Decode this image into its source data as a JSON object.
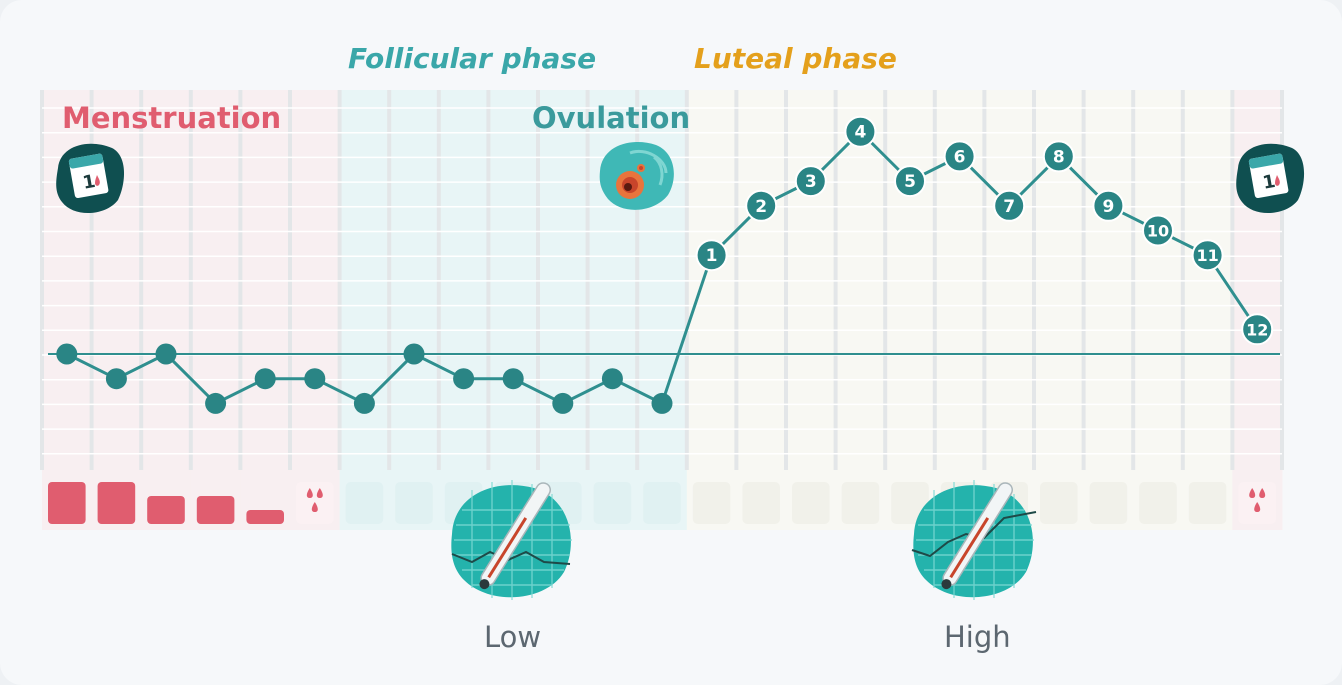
{
  "phases": {
    "follicular": "Follicular phase",
    "luteal": "Luteal phase"
  },
  "labels": {
    "menstruation": "Menstruation",
    "ovulation": "Ovulation",
    "low": "Low",
    "high": "High"
  },
  "colors": {
    "menstruation": "#e05d6f",
    "follicular": "#3aa7a9",
    "luteal": "#e4a01c",
    "line": "#2f8f8f",
    "marker": "#2a8585"
  },
  "icons": {
    "calendar_left": "calendar-icon",
    "calendar_right": "calendar-icon",
    "ovulation": "egg-cell-icon",
    "thermometer_low": "thermometer-icon",
    "thermometer_high": "thermometer-icon",
    "spotting": "blood-drops-icon"
  },
  "chart_data": {
    "type": "line",
    "title": "",
    "xlabel": "",
    "ylabel": "",
    "cycle_days": 25,
    "menstruation_days": [
      1,
      2,
      3,
      4,
      5,
      6,
      25
    ],
    "follicular_days": [
      7,
      8,
      9,
      10,
      11,
      12,
      13
    ],
    "luteal_days": [
      14,
      15,
      16,
      17,
      18,
      19,
      20,
      21,
      22,
      23,
      24
    ],
    "bleeding_flow": [
      3,
      3,
      2,
      2,
      1,
      "spotting",
      0,
      0,
      0,
      0,
      0,
      0,
      0,
      0,
      0,
      0,
      0,
      0,
      0,
      0,
      0,
      0,
      0,
      0,
      "spotting"
    ],
    "baseline_level": 0,
    "temperatures": [
      0,
      -1,
      0,
      -2,
      -1,
      -1,
      -2,
      0,
      -1,
      -1,
      -2,
      -1,
      -2,
      4,
      6,
      7,
      9,
      7,
      8,
      6,
      8,
      6,
      5,
      4,
      1
    ],
    "post_ovulation_labels": [
      "1",
      "2",
      "3",
      "4",
      "5",
      "6",
      "7",
      "8",
      "9",
      "10",
      "11",
      "12"
    ]
  }
}
